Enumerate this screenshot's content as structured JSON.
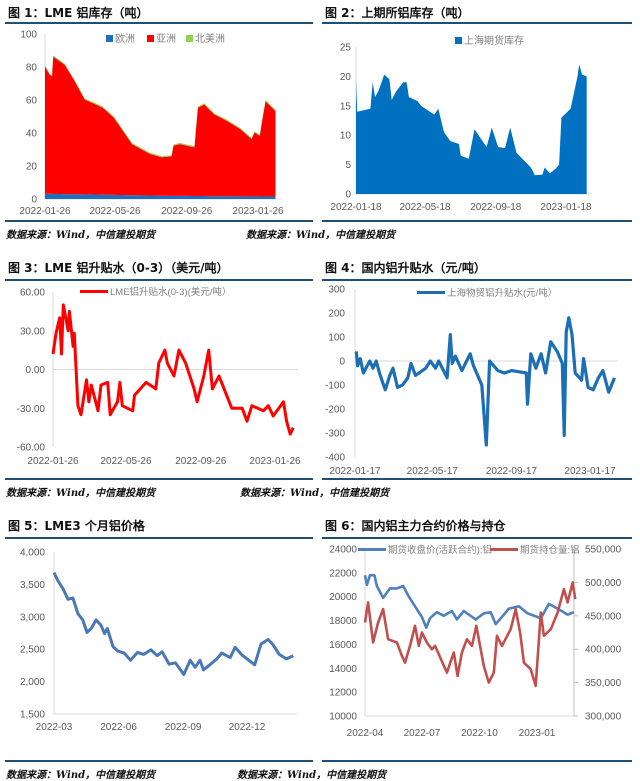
{
  "sources": {
    "row1_left": "数据来源：Wind，中信建投期货",
    "row1_right": "数据来源：Wind，中信建投期货",
    "row2_left": "数据来源：Wind，中信建投期货",
    "row2_right": "数据来源：Wind，中信建投期货",
    "row3_left": "数据来源：Wind，中信建投期货",
    "row3_right": "数据来源：Wind，中信建投期货"
  },
  "colors": {
    "rule": "#1f4e79"
  },
  "chart_data": [
    {
      "title": "图 1：LME 铝库存（吨）",
      "type": "area",
      "stacked": true,
      "legend_position": "top",
      "ylim": [
        0,
        100
      ],
      "y_ticks": [
        0,
        20,
        40,
        60,
        80,
        100
      ],
      "y_tick_labels": [
        "0",
        "20",
        "40",
        "60",
        "80",
        "100"
      ],
      "x_ticks": [
        "2022-01-26",
        "2022-05-26",
        "2022-09-26",
        "2023-01-26"
      ],
      "x": [
        "2022-01-26",
        "2022-02-03",
        "2022-02-07",
        "2022-02-09",
        "2022-03-01",
        "2022-03-18",
        "2022-04-04",
        "2022-04-23",
        "2022-05-05",
        "2022-05-24",
        "2022-06-24",
        "2022-07-25",
        "2022-08-14",
        "2022-08-31",
        "2022-09-03",
        "2022-09-14",
        "2022-10-09",
        "2022-10-15",
        "2022-10-26",
        "2022-11-12",
        "2022-12-04",
        "2022-12-27",
        "2023-01-15",
        "2023-01-20",
        "2023-01-29",
        "2023-02-02",
        "2023-02-08",
        "2023-02-25"
      ],
      "series": [
        {
          "name": "欧洲",
          "color": "#1f6fbf",
          "values": [
            3.2,
            3.2,
            3.1,
            3.1,
            3.0,
            2.9,
            2.8,
            2.7,
            2.6,
            2.5,
            2.3,
            2.1,
            2.0,
            1.9,
            1.9,
            1.9,
            1.8,
            1.8,
            1.8,
            1.7,
            1.7,
            1.6,
            1.6,
            1.6,
            1.5,
            1.5,
            1.5,
            1.5
          ]
        },
        {
          "name": "亚洲",
          "color": "#ff0000",
          "values": [
            77.1,
            72.1,
            71.2,
            83.2,
            78.3,
            68.4,
            57.5,
            54.6,
            52.7,
            46.8,
            31.0,
            25.2,
            23.3,
            23.9,
            30.4,
            31.4,
            29.5,
            53.5,
            55.5,
            49.6,
            45.6,
            40.7,
            34.7,
            38.7,
            36.8,
            45.8,
            57.8,
            51.8
          ]
        },
        {
          "name": "北美洲",
          "color": "#92d050",
          "values": [
            0.7,
            0.7,
            0.7,
            0.7,
            0.7,
            0.7,
            0.7,
            0.7,
            0.7,
            0.7,
            0.7,
            0.7,
            0.7,
            0.7,
            0.7,
            0.7,
            0.7,
            0.7,
            0.7,
            0.7,
            0.7,
            0.7,
            0.7,
            0.7,
            0.7,
            0.7,
            0.7,
            0.7
          ]
        }
      ]
    },
    {
      "title": "图 2：上期所铝库存（吨）",
      "type": "area",
      "legend_position": "top",
      "ylim": [
        0,
        25
      ],
      "y_ticks": [
        0,
        5,
        10,
        15,
        20,
        25
      ],
      "y_tick_labels": [
        "0",
        "5",
        "10",
        "15",
        "20",
        "25"
      ],
      "x_ticks": [
        "2022-01-18",
        "2022-05-18",
        "2022-09-18",
        "2023-01-18"
      ],
      "series": [
        {
          "name": "上海期货库存",
          "color": "#0070c0",
          "x": [
            "2022-01-18",
            "2022-01-20",
            "2022-02-12",
            "2022-02-16",
            "2022-02-20",
            "2022-02-26",
            "2022-03-08",
            "2022-03-17",
            "2022-03-21",
            "2022-03-29",
            "2022-04-10",
            "2022-04-16",
            "2022-04-20",
            "2022-05-05",
            "2022-05-11",
            "2022-06-03",
            "2022-06-10",
            "2022-06-20",
            "2022-07-01",
            "2022-07-16",
            "2022-07-19",
            "2022-08-02",
            "2022-08-12",
            "2022-08-19",
            "2022-09-02",
            "2022-09-11",
            "2022-09-22",
            "2022-10-04",
            "2022-10-13",
            "2022-10-24",
            "2022-11-18",
            "2022-11-25",
            "2022-12-08",
            "2022-12-12",
            "2022-12-21",
            "2022-12-31",
            "2023-01-06",
            "2023-01-10",
            "2023-01-26",
            "2023-02-07",
            "2023-02-10",
            "2023-02-15",
            "2023-02-23"
          ],
          "values": [
            19.5,
            14,
            14.5,
            19,
            16.5,
            17.5,
            20.3,
            19.5,
            16,
            17.5,
            19,
            19,
            16.5,
            15.8,
            15,
            13.5,
            14.5,
            10.5,
            9,
            8.5,
            6.5,
            6,
            11,
            10,
            8,
            11.3,
            8,
            7.8,
            11.3,
            7,
            4.5,
            3.2,
            3.3,
            4.5,
            3.5,
            4.3,
            5,
            13,
            14.5,
            20,
            22,
            20.3,
            20
          ]
        }
      ]
    },
    {
      "title": "图 3：LME 铝升贴水（0-3）（美元/吨）",
      "type": "line",
      "legend_position": "top",
      "ylim": [
        -60,
        60
      ],
      "y_ticks": [
        -60,
        -30,
        0,
        30,
        60
      ],
      "y_tick_labels": [
        "-60.00",
        "-30.00",
        "0.00",
        "30.00",
        "60.00"
      ],
      "x_ticks": [
        "2022-01-26",
        "2022-05-26",
        "2022-09-26",
        "2023-01-26"
      ],
      "series": [
        {
          "name": "LME铝升贴水(0-3)(美元/吨）",
          "color": "#ff0000",
          "x": [
            "2022-01-26",
            "2022-01-31",
            "2022-02-06",
            "2022-02-09",
            "2022-02-12",
            "2022-02-20",
            "2022-02-22",
            "2022-02-28",
            "2022-03-02",
            "2022-03-08",
            "2022-03-13",
            "2022-03-22",
            "2022-03-26",
            "2022-03-30",
            "2022-04-10",
            "2022-04-15",
            "2022-04-26",
            "2022-04-30",
            "2022-05-12",
            "2022-05-16",
            "2022-05-20",
            "2022-06-06",
            "2022-06-09",
            "2022-06-28",
            "2022-07-14",
            "2022-07-19",
            "2022-07-29",
            "2022-08-02",
            "2022-08-13",
            "2022-08-21",
            "2022-09-01",
            "2022-09-15",
            "2022-09-20",
            "2022-10-01",
            "2022-10-09",
            "2022-10-15",
            "2022-10-26",
            "2022-11-16",
            "2022-12-03",
            "2022-12-11",
            "2022-12-19",
            "2023-01-07",
            "2023-01-15",
            "2023-01-23",
            "2023-02-09",
            "2023-02-14",
            "2023-02-20",
            "2023-02-25"
          ],
          "values": [
            12,
            28,
            40,
            12,
            50,
            30,
            45,
            18,
            28,
            -28,
            -35,
            -8,
            -25,
            -12,
            -32,
            -12,
            -10,
            -35,
            -25,
            -10,
            -28,
            -32,
            -20,
            -10,
            -15,
            5,
            15,
            5,
            -5,
            15,
            5,
            -15,
            -25,
            -5,
            15,
            -15,
            -5,
            -30,
            -30,
            -40,
            -28,
            -32,
            -28,
            -36,
            -25,
            -40,
            -50,
            -45
          ]
        }
      ]
    },
    {
      "title": "图 4：国内铝升贴水（元/吨）",
      "type": "line",
      "legend_position": "top",
      "ylim": [
        -400,
        300
      ],
      "y_ticks": [
        -400,
        -300,
        -200,
        -100,
        0,
        100,
        200,
        300
      ],
      "y_tick_labels": [
        "-400",
        "-300",
        "-200",
        "-100",
        "0",
        "100",
        "200",
        "300"
      ],
      "x_ticks": [
        "2022-01-17",
        "2022-05-17",
        "2022-09-17",
        "2023-01-17"
      ],
      "series": [
        {
          "name": "上海物贸铝升贴水(元/吨）",
          "color": "#1a6fb5",
          "x": [
            "2022-01-19",
            "2022-01-21",
            "2022-01-25",
            "2022-01-30",
            "2022-02-09",
            "2022-02-14",
            "2022-02-19",
            "2022-02-24",
            "2022-03-01",
            "2022-03-05",
            "2022-03-12",
            "2022-03-17",
            "2022-03-24",
            "2022-04-01",
            "2022-04-09",
            "2022-04-14",
            "2022-04-21",
            "2022-05-07",
            "2022-05-14",
            "2022-05-22",
            "2022-05-27",
            "2022-06-09",
            "2022-06-14",
            "2022-06-17",
            "2022-06-22",
            "2022-07-02",
            "2022-07-15",
            "2022-07-20",
            "2022-08-02",
            "2022-08-09",
            "2022-08-14",
            "2022-08-27",
            "2022-09-06",
            "2022-09-17",
            "2022-10-10",
            "2022-10-12",
            "2022-10-17",
            "2022-10-25",
            "2022-11-02",
            "2022-11-09",
            "2022-11-17",
            "2022-11-27",
            "2022-12-05",
            "2022-12-08",
            "2022-12-11",
            "2022-12-15",
            "2022-12-20",
            "2022-12-25",
            "2023-01-04",
            "2023-01-07",
            "2023-01-14",
            "2023-01-22",
            "2023-01-30",
            "2023-02-06",
            "2023-02-15",
            "2023-02-24"
          ],
          "values": [
            40,
            -20,
            10,
            -50,
            0,
            -30,
            0,
            -50,
            -90,
            -120,
            -60,
            -30,
            -110,
            -100,
            -70,
            -10,
            -60,
            -30,
            0,
            -30,
            0,
            -70,
            110,
            -10,
            20,
            -40,
            30,
            -20,
            -100,
            -350,
            0,
            -40,
            -50,
            -40,
            -50,
            -180,
            30,
            -30,
            30,
            -50,
            80,
            40,
            -10,
            -310,
            120,
            180,
            110,
            -50,
            -80,
            10,
            -110,
            -120,
            -70,
            -40,
            -130,
            -70
          ]
        }
      ]
    },
    {
      "title": "图 5：LME3 个月铝价格",
      "type": "line",
      "ylim": [
        1500,
        4000
      ],
      "y_ticks": [
        1500,
        2000,
        2500,
        3000,
        3500,
        4000
      ],
      "y_tick_labels": [
        "1,500",
        "2,000",
        "2,500",
        "3,000",
        "3,500",
        "4,000"
      ],
      "x_ticks": [
        "2022-03",
        "2022-06",
        "2022-09",
        "2022-12"
      ],
      "series": [
        {
          "color": "#4a78b5",
          "x": [
            "2022-03-01",
            "2022-03-07",
            "2022-03-14",
            "2022-03-21",
            "2022-03-28",
            "2022-04-04",
            "2022-04-11",
            "2022-04-17",
            "2022-04-23",
            "2022-04-30",
            "2022-05-07",
            "2022-05-12",
            "2022-05-16",
            "2022-05-24",
            "2022-05-31",
            "2022-06-09",
            "2022-06-18",
            "2022-06-28",
            "2022-07-07",
            "2022-07-17",
            "2022-07-26",
            "2022-08-02",
            "2022-08-12",
            "2022-08-21",
            "2022-09-02",
            "2022-09-11",
            "2022-09-18",
            "2022-09-25",
            "2022-09-30",
            "2022-10-09",
            "2022-10-19",
            "2022-10-26",
            "2022-11-07",
            "2022-11-14",
            "2022-11-23",
            "2022-11-30",
            "2022-12-12",
            "2022-12-21",
            "2022-12-31",
            "2023-01-07",
            "2023-01-16",
            "2023-01-26",
            "2023-02-05"
          ],
          "values": [
            3680,
            3550,
            3430,
            3270,
            3290,
            3050,
            2950,
            2760,
            2820,
            2950,
            2870,
            2740,
            2820,
            2540,
            2470,
            2440,
            2330,
            2450,
            2420,
            2490,
            2400,
            2460,
            2270,
            2290,
            2110,
            2330,
            2220,
            2330,
            2180,
            2260,
            2350,
            2440,
            2370,
            2530,
            2420,
            2360,
            2260,
            2580,
            2650,
            2570,
            2420,
            2350,
            2400
          ]
        }
      ]
    },
    {
      "title": "图 6：国内铝主力合约价格与持仓",
      "type": "line",
      "legend_position": "top",
      "ylim": [
        10000,
        24000
      ],
      "y2lim": [
        300000,
        550000
      ],
      "y_ticks": [
        10000,
        12000,
        14000,
        16000,
        18000,
        20000,
        22000,
        24000
      ],
      "y_tick_labels": [
        "10000",
        "12000",
        "14000",
        "16000",
        "18000",
        "20000",
        "22000",
        "24000"
      ],
      "y2_ticks": [
        300000,
        350000,
        400000,
        450000,
        500000,
        550000
      ],
      "y2_tick_labels": [
        "300,000",
        "350,000",
        "400,000",
        "450,000",
        "500,000",
        "550,000"
      ],
      "x_ticks": [
        "2022-04",
        "2022-07",
        "2022-10",
        "2023-01"
      ],
      "series": [
        {
          "name": "期货收盘价(活跃合约):铝",
          "color": "#4f81bd",
          "axis": "left",
          "x": [
            "2022-04-01",
            "2022-04-04",
            "2022-04-09",
            "2022-04-16",
            "2022-04-20",
            "2022-04-30",
            "2022-05-11",
            "2022-05-22",
            "2022-06-01",
            "2022-06-09",
            "2022-06-20",
            "2022-07-01",
            "2022-07-08",
            "2022-07-14",
            "2022-07-25",
            "2022-08-05",
            "2022-08-18",
            "2022-08-26",
            "2022-09-06",
            "2022-09-25",
            "2022-10-08",
            "2022-10-19",
            "2022-10-27",
            "2022-11-09",
            "2022-11-17",
            "2022-12-03",
            "2022-12-17",
            "2023-01-07",
            "2023-01-20",
            "2023-02-03",
            "2023-02-19",
            "2023-03-01"
          ],
          "values": [
            21800,
            21000,
            21800,
            21800,
            20900,
            19900,
            20700,
            20700,
            20900,
            20100,
            19200,
            18300,
            17400,
            18200,
            18700,
            18400,
            18800,
            18100,
            18800,
            18100,
            18600,
            18700,
            17700,
            18500,
            19000,
            19200,
            18600,
            18200,
            19400,
            19000,
            18500,
            18700
          ]
        },
        {
          "name": "期货持仓量:铝",
          "color": "#c0504d",
          "axis": "right",
          "x": [
            "2022-04-01",
            "2022-04-06",
            "2022-04-14",
            "2022-04-22",
            "2022-04-30",
            "2022-05-08",
            "2022-05-22",
            "2022-05-30",
            "2022-06-04",
            "2022-06-12",
            "2022-06-20",
            "2022-06-26",
            "2022-07-01",
            "2022-07-09",
            "2022-07-17",
            "2022-07-22",
            "2022-08-10",
            "2022-08-21",
            "2022-08-27",
            "2022-09-03",
            "2022-09-11",
            "2022-09-19",
            "2022-09-26",
            "2022-10-08",
            "2022-10-16",
            "2022-10-24",
            "2022-10-29",
            "2022-11-06",
            "2022-11-20",
            "2022-11-28",
            "2022-12-05",
            "2022-12-11",
            "2022-12-22",
            "2022-12-30",
            "2023-01-07",
            "2023-01-12",
            "2023-01-23",
            "2023-02-03",
            "2023-02-13",
            "2023-02-19",
            "2023-02-27",
            "2023-03-03"
          ],
          "values": [
            440000,
            470000,
            410000,
            440000,
            460000,
            415000,
            410000,
            390000,
            380000,
            405000,
            435000,
            405000,
            425000,
            410000,
            400000,
            405000,
            365000,
            395000,
            360000,
            395000,
            415000,
            405000,
            435000,
            375000,
            350000,
            365000,
            420000,
            405000,
            430000,
            460000,
            425000,
            380000,
            370000,
            345000,
            455000,
            420000,
            430000,
            455000,
            490000,
            470000,
            500000,
            475000
          ]
        }
      ]
    }
  ]
}
